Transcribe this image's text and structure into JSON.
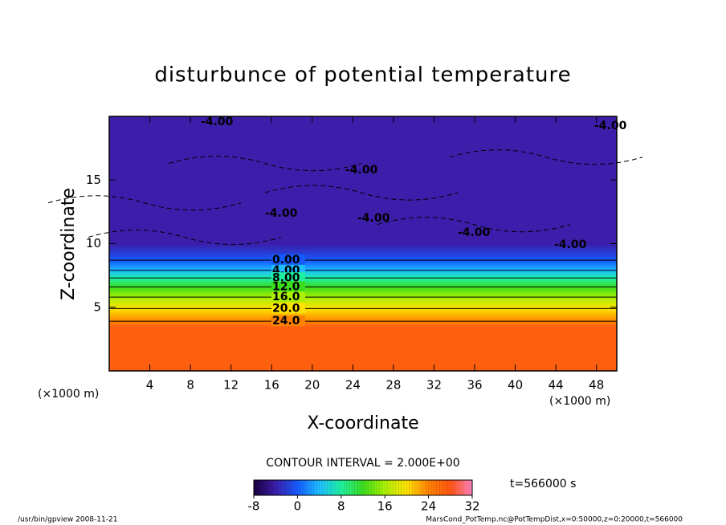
{
  "chart_data": {
    "type": "contour",
    "title": "disturbunce of potential temperature",
    "x_label": "X-coordinate",
    "y_label": "Z-coordinate",
    "x_unit_left": "(×1000 m)",
    "x_unit_right": "(×1000 m)",
    "xlim": [
      0,
      50
    ],
    "xticks": [
      4,
      8,
      12,
      16,
      20,
      24,
      28,
      32,
      36,
      40,
      44,
      48
    ],
    "ylim": [
      0,
      20
    ],
    "yticks": [
      5,
      10,
      15
    ],
    "profile": {
      "z": [
        0,
        3.5,
        3.9,
        4.4,
        4.9,
        5.35,
        5.8,
        6.2,
        6.6,
        6.95,
        7.3,
        7.6,
        7.9,
        8.3,
        8.7,
        9.3,
        10,
        20
      ],
      "values": [
        27,
        27,
        24,
        22,
        20,
        18,
        16,
        14,
        12,
        10,
        8,
        6,
        4,
        2,
        0,
        -2,
        -4,
        -4
      ]
    },
    "contour_levels": [
      {
        "value": 0,
        "label": "0.00"
      },
      {
        "value": 4,
        "label": "4.00"
      },
      {
        "value": 8,
        "label": "8.00"
      },
      {
        "value": 12,
        "label": "12.0"
      },
      {
        "value": 16,
        "label": "16.0"
      },
      {
        "value": 20,
        "label": "20.0"
      },
      {
        "value": 24,
        "label": "24.0"
      }
    ],
    "negative_labels": [
      "-4.00",
      "-4.00",
      "-4.00",
      "-4.00",
      "-4.00",
      "-4.00",
      "-4.00"
    ],
    "contour_interval": "CONTOUR INTERVAL = 2.000E+00",
    "time": "t=566000 s",
    "colorbar": {
      "lim": [
        -8,
        32
      ],
      "ticks": [
        -8,
        0,
        8,
        16,
        24,
        32
      ]
    },
    "footer_left": "/usr/bin/gpview  2008-11-21",
    "footer_right": "MarsCond_PotTemp.nc@PotTempDist,x=0:50000,z=0:20000,t=566000"
  }
}
